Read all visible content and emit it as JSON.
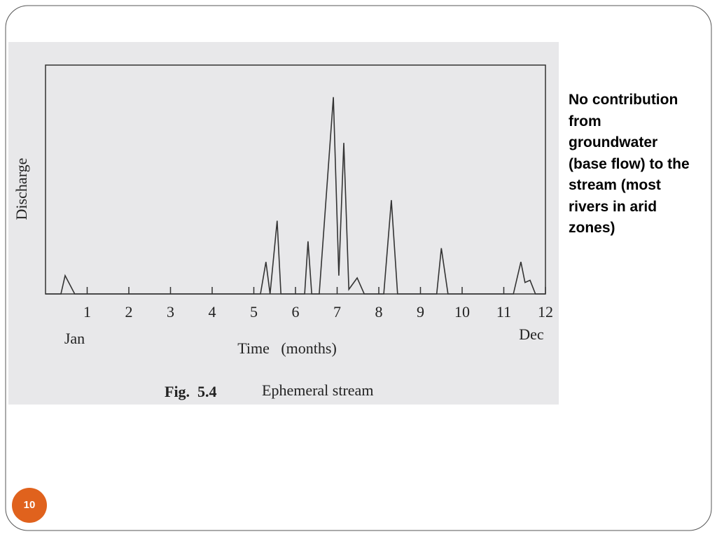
{
  "slide": {
    "text": "No contribution from groundwater (base flow) to the stream (most rivers in arid  zones)",
    "page_number": "10"
  },
  "chart_data": {
    "type": "line",
    "y_label": "Discharge",
    "x_label": "Time   (months)",
    "caption_label": "Fig.  5.4",
    "caption_text": "Ephemeral stream",
    "annotations": [
      "Jan",
      "Dec"
    ],
    "x": [
      0,
      0.37,
      0.47,
      0.7,
      5.16,
      5.29,
      5.39,
      5.56,
      5.65,
      6.22,
      6.3,
      6.39,
      6.57,
      6.91,
      7.04,
      7.16,
      7.28,
      7.48,
      7.65,
      8.12,
      8.3,
      8.45,
      9.39,
      9.5,
      9.66,
      11.23,
      11.41,
      11.51,
      11.63,
      11.76,
      12
    ],
    "values": [
      0,
      0,
      8,
      0,
      0,
      14,
      0,
      32,
      0,
      0,
      23,
      0,
      0,
      86,
      8,
      66,
      2,
      7,
      0,
      0,
      41,
      0,
      0,
      20,
      0,
      0,
      14,
      5,
      6,
      0,
      0
    ],
    "color": "#333333",
    "xlim": [
      0,
      12
    ],
    "ylim": [
      0,
      100
    ],
    "xticks": [
      1,
      2,
      3,
      4,
      5,
      6,
      7,
      8,
      9,
      10,
      11,
      12
    ]
  }
}
